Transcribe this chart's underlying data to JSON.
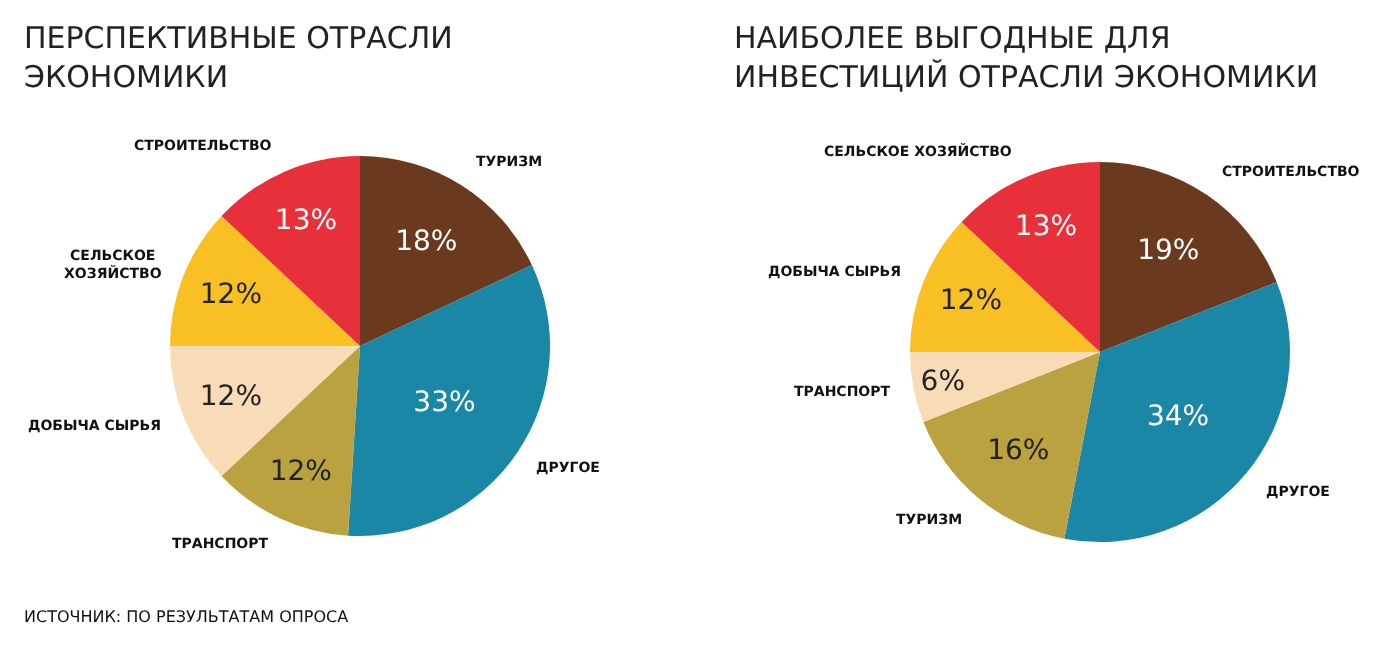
{
  "chart_data": [
    {
      "type": "pie",
      "title": "ПЕРСПЕКТИВНЫЕ ОТРАСЛИ\nЭКОНОМИКИ",
      "categories": [
        "ТУРИЗМ",
        "ДРУГОЕ",
        "ТРАНСПОРТ",
        "ДОБЫЧА СЫРЬЯ",
        "СЕЛЬСКОЕ\nХОЗЯЙСТВО",
        "СТРОИТЕЛЬСТВО"
      ],
      "values": [
        18,
        33,
        12,
        12,
        12,
        13
      ],
      "value_labels": [
        "18%",
        "33%",
        "12%",
        "12%",
        "12%",
        "13%"
      ],
      "colors": [
        "#6b3a1e",
        "#1a87a6",
        "#b9a23f",
        "#f8dcb8",
        "#f8c022",
        "#e8303a"
      ],
      "annotations": [
        "ИСТОЧНИК: ПО РЕЗУЛЬТАТАМ ОПРОСА"
      ]
    },
    {
      "type": "pie",
      "title": "НАИБОЛЕЕ ВЫГОДНЫЕ ДЛЯ\nИНВЕСТИЦИЙ ОТРАСЛИ ЭКОНОМИКИ",
      "categories": [
        "СТРОИТЕЛЬСТВО",
        "ДРУГОЕ",
        "ТУРИЗМ",
        "ТРАНСПОРТ",
        "ДОБЫЧА СЫРЬЯ",
        "СЕЛЬСКОЕ ХОЗЯЙСТВО"
      ],
      "values": [
        19,
        34,
        16,
        6,
        12,
        13
      ],
      "value_labels": [
        "19%",
        "34%",
        "16%",
        "6%",
        "12%",
        "13%"
      ],
      "colors": [
        "#6b3a1e",
        "#1a87a6",
        "#b9a23f",
        "#f8dcb8",
        "#f8c022",
        "#e8303a"
      ]
    }
  ]
}
